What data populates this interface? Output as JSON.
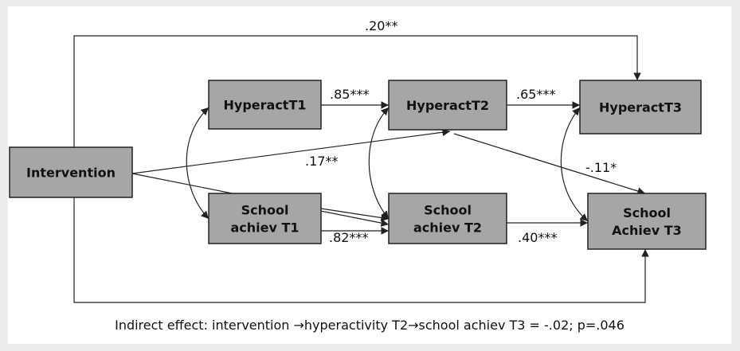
{
  "nodes": [
    {
      "label": "Intervention"
    },
    {
      "label": "HyperactT1"
    },
    {
      "label": "HyperactT2"
    },
    {
      "label": "HyperactT3"
    },
    {
      "label": "School achiev T1"
    },
    {
      "label": "School achiev T2"
    },
    {
      "label": "School Achiev T3"
    }
  ],
  "edges": [
    {
      "label": ".20**"
    },
    {
      "label": ".85***"
    },
    {
      "label": ".65***"
    },
    {
      "label": ".17**"
    },
    {
      "label": "-.11*"
    },
    {
      "label": ".82***"
    },
    {
      "label": ".40***"
    }
  ],
  "caption": "Indirect effect: intervention →hyperactivity T2→school achiev T3 = -.02; p=.046"
}
